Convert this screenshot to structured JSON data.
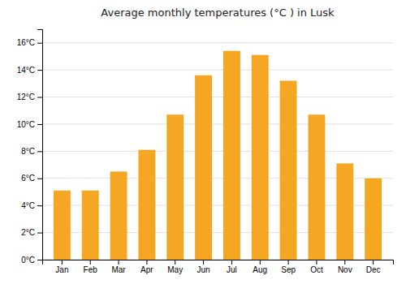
{
  "chart_data": {
    "type": "bar",
    "title": "Average monthly temperatures (°C ) in Lusk",
    "categories": [
      "Jan",
      "Feb",
      "Mar",
      "Apr",
      "May",
      "Jun",
      "Jul",
      "Aug",
      "Sep",
      "Oct",
      "Nov",
      "Dec"
    ],
    "values": [
      5.1,
      5.1,
      6.5,
      8.1,
      10.7,
      13.6,
      15.4,
      15.1,
      13.2,
      10.7,
      7.1,
      6.0
    ],
    "color": "#F5A623",
    "ylim": [
      0,
      17
    ],
    "yticks": [
      {
        "value": 0,
        "label": "0°C"
      },
      {
        "value": 2,
        "label": "2°C"
      },
      {
        "value": 4,
        "label": "4°C"
      },
      {
        "value": 6,
        "label": "6°C"
      },
      {
        "value": 8,
        "label": "8°C"
      },
      {
        "value": 10,
        "label": "10°C"
      },
      {
        "value": 12,
        "label": "12°C"
      },
      {
        "value": 14,
        "label": "14°C"
      },
      {
        "value": 16,
        "label": "16°C"
      }
    ],
    "grid": true
  }
}
